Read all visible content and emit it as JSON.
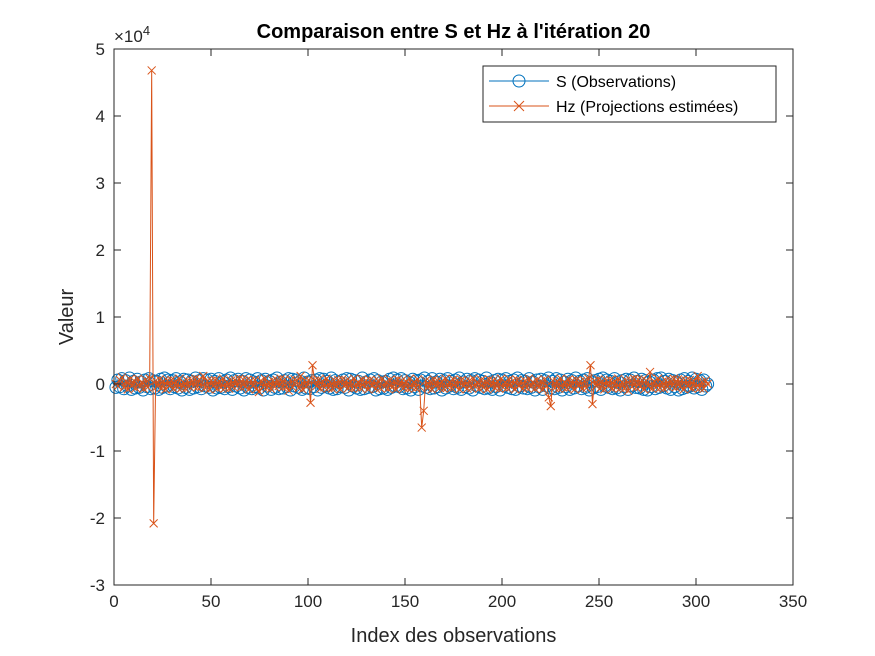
{
  "chart_data": {
    "type": "line",
    "title": "Comparaison entre S et Hz à l'itération 20",
    "xlabel": "Index des observations",
    "ylabel": "Valeur",
    "exponent_label": {
      "base": "×10",
      "power": "4"
    },
    "xlim": [
      0,
      350
    ],
    "ylim": [
      -3,
      5
    ],
    "y_scale_multiplier": 10000,
    "xticks": [
      0,
      50,
      100,
      150,
      200,
      250,
      300,
      350
    ],
    "yticks": [
      -3,
      -2,
      -1,
      0,
      1,
      2,
      3,
      4,
      5
    ],
    "grid": false,
    "legend_position": "top-right",
    "series": [
      {
        "name": "S (Observations)",
        "color": "#0072BD",
        "marker": "circle",
        "x_start": 1,
        "x_end": 306,
        "values": [
          -0.05,
          0.06,
          -0.04,
          0.08,
          -0.07,
          0.05,
          -0.03,
          0.09,
          -0.08,
          0.04,
          -0.06,
          0.07,
          -0.05,
          0.03,
          -0.09,
          0.06,
          -0.04,
          0.08,
          -0.07,
          0.05,
          -0.06,
          0.04,
          -0.08,
          0.07,
          -0.05,
          0.09,
          -0.03,
          0.06,
          -0.07,
          0.05,
          -0.04,
          0.08,
          -0.06,
          0.03,
          -0.09,
          0.07,
          -0.05,
          0.06,
          -0.08,
          0.04,
          -0.06,
          0.09,
          -0.04,
          0.05,
          -0.07,
          0.08,
          -0.03,
          0.06,
          -0.05,
          0.07,
          -0.09,
          0.04,
          -0.06,
          0.08,
          -0.05,
          0.03,
          -0.07,
          0.06,
          -0.04,
          0.09,
          -0.08,
          0.05,
          -0.03,
          0.07,
          -0.06,
          0.04,
          -0.09,
          0.08,
          -0.05,
          0.06,
          -0.07,
          0.03,
          -0.04,
          0.08,
          -0.06,
          0.05,
          -0.09,
          0.07,
          -0.03,
          0.04,
          -0.08,
          0.06,
          -0.05,
          0.09,
          -0.07,
          0.03,
          -0.06,
          0.05,
          -0.04,
          0.08,
          -0.09,
          0.07,
          -0.03,
          0.06,
          -0.05,
          0.04,
          -0.08,
          0.09,
          -0.06,
          0.03,
          -0.07,
          0.05,
          -0.04,
          0.06,
          -0.09,
          0.08,
          -0.05,
          0.07,
          -0.03,
          0.04,
          -0.06,
          0.09,
          -0.08,
          0.05,
          -0.07,
          0.03,
          -0.04,
          0.06,
          -0.05,
          0.08,
          -0.09,
          0.07,
          -0.03,
          0.05,
          -0.06,
          0.04,
          -0.08,
          0.09,
          -0.07,
          0.03,
          -0.05,
          0.06,
          -0.04,
          0.08,
          -0.09,
          0.05,
          -0.07,
          0.03,
          -0.06,
          0.04,
          -0.08,
          0.07,
          -0.05,
          0.09,
          -0.03,
          0.06,
          -0.04,
          0.08,
          -0.07,
          0.05,
          -0.06,
          0.03,
          -0.09,
          0.07,
          -0.04,
          0.05,
          -0.08,
          0.06,
          -0.03,
          0.09,
          -0.05,
          0.04,
          -0.07,
          0.08,
          -0.06,
          0.03,
          -0.04,
          0.07,
          -0.09,
          0.05,
          -0.06,
          0.08,
          -0.03,
          0.04,
          -0.07,
          0.06,
          -0.05,
          0.09,
          -0.08,
          0.03,
          -0.04,
          0.07,
          -0.06,
          0.05,
          -0.09,
          0.08,
          -0.03,
          0.06,
          -0.05,
          0.04,
          -0.07,
          0.09,
          -0.06,
          0.03,
          -0.08,
          0.05,
          -0.04,
          0.07,
          -0.09,
          0.06,
          -0.03,
          0.08,
          -0.05,
          0.04,
          -0.07,
          0.06,
          -0.08,
          0.09,
          -0.03,
          0.05,
          -0.06,
          0.04,
          -0.07,
          0.08,
          -0.05,
          0.03,
          -0.09,
          0.06,
          -0.04,
          0.07,
          -0.08,
          0.05,
          -0.03,
          0.09,
          -0.06,
          0.04,
          -0.07,
          0.08,
          -0.05,
          0.06,
          -0.09,
          0.03,
          -0.04,
          0.07,
          -0.08,
          0.05,
          -0.06,
          0.09,
          -0.03,
          0.04,
          -0.07,
          0.06,
          -0.05,
          0.08,
          -0.09,
          0.03,
          -0.06,
          0.05,
          -0.04,
          0.07,
          -0.08,
          0.09,
          -0.03,
          0.06,
          -0.05,
          0.04,
          -0.07,
          0.08,
          -0.06,
          0.03,
          -0.09,
          0.05,
          -0.04,
          0.07,
          -0.08,
          0.06,
          -0.03,
          0.09,
          -0.05,
          0.04,
          -0.06,
          0.07,
          -0.08,
          0.05,
          -0.09,
          0.03,
          -0.04,
          0.06,
          -0.07,
          0.08,
          -0.05,
          0.09,
          -0.03,
          0.04,
          -0.06,
          0.07,
          -0.08,
          0.05,
          -0.04,
          0.03,
          -0.09,
          0.06,
          -0.07,
          0.08,
          -0.05,
          0.04,
          -0.03,
          0.09,
          -0.06,
          0.07,
          -0.04,
          0.05,
          -0.08,
          0.06,
          -0.03,
          0.0
        ]
      },
      {
        "name": "Hz (Projections estimées)",
        "color": "#D95319",
        "marker": "x",
        "x_start": 1,
        "x_end": 306,
        "values": [
          0.0,
          -0.03,
          0.06,
          0.1,
          -0.05,
          0.04,
          -0.08,
          0.07,
          -0.03,
          0.05,
          -0.06,
          0.08,
          -0.04,
          0.03,
          -0.07,
          0.06,
          -0.05,
          0.08,
          4.68,
          -2.08,
          0.05,
          -0.03,
          0.07,
          -0.06,
          0.04,
          -0.08,
          0.05,
          -0.03,
          0.06,
          -0.07,
          0.04,
          -0.05,
          0.08,
          -0.06,
          0.03,
          -0.07,
          0.05,
          -0.04,
          0.06,
          -0.03,
          0.08,
          -0.05,
          0.07,
          -0.04,
          0.12,
          -0.06,
          0.04,
          -0.08,
          0.05,
          -0.03,
          0.06,
          -0.07,
          0.04,
          -0.05,
          0.08,
          -0.06,
          0.03,
          -0.07,
          0.05,
          -0.04,
          0.06,
          -0.03,
          0.08,
          -0.05,
          0.07,
          -0.04,
          0.06,
          -0.08,
          0.05,
          -0.03,
          0.06,
          -0.07,
          -0.12,
          0.05,
          -0.04,
          0.08,
          -0.06,
          0.03,
          -0.07,
          0.05,
          -0.04,
          0.06,
          -0.03,
          0.08,
          -0.05,
          0.07,
          -0.04,
          -0.1,
          0.06,
          -0.05,
          0.07,
          0.04,
          -0.06,
          0.12,
          -0.08,
          0.05,
          -0.04,
          0.06,
          -0.28,
          0.28,
          0.05,
          -0.03,
          0.06,
          -0.07,
          0.04,
          -0.05,
          0.08,
          -0.06,
          0.03,
          -0.07,
          0.05,
          -0.04,
          0.06,
          -0.08,
          0.07,
          -0.03,
          0.05,
          -0.06,
          0.04,
          -0.07,
          0.08,
          -0.05,
          0.03,
          -0.06,
          0.07,
          -0.04,
          0.05,
          -0.08,
          0.06,
          -0.03,
          0.04,
          -0.07,
          0.05,
          -0.06,
          0.08,
          -0.04,
          0.03,
          -0.07,
          0.06,
          -0.05,
          0.04,
          -0.08,
          0.07,
          -0.03,
          0.05,
          -0.06,
          0.04,
          -0.07,
          0.08,
          -0.05,
          0.03,
          -0.06,
          0.07,
          -0.04,
          -0.65,
          -0.4,
          0.05,
          -0.06,
          0.04,
          -0.08,
          0.07,
          -0.03,
          0.05,
          -0.06,
          0.04,
          -0.07,
          0.08,
          -0.05,
          0.03,
          -0.06,
          0.07,
          -0.04,
          0.05,
          -0.08,
          0.06,
          -0.03,
          0.04,
          -0.07,
          0.05,
          -0.06,
          0.08,
          -0.04,
          0.03,
          -0.07,
          0.06,
          -0.05,
          0.04,
          -0.08,
          0.07,
          -0.03,
          0.05,
          -0.06,
          0.04,
          -0.07,
          0.08,
          -0.05,
          0.03,
          -0.06,
          0.07,
          -0.04,
          0.05,
          -0.08,
          0.06,
          -0.03,
          0.04,
          -0.07,
          0.05,
          -0.06,
          0.08,
          -0.04,
          0.03,
          -0.07,
          0.06,
          -0.05,
          0.04,
          -0.08,
          0.07,
          -0.03,
          -0.2,
          -0.33,
          0.05,
          -0.06,
          0.04,
          -0.07,
          0.08,
          -0.05,
          0.03,
          -0.06,
          0.07,
          -0.04,
          0.05,
          -0.08,
          0.06,
          -0.03,
          0.04,
          -0.07,
          0.05,
          -0.06,
          0.08,
          0.28,
          -0.3,
          0.05,
          -0.03,
          0.07,
          -0.06,
          0.04,
          -0.08,
          0.05,
          -0.03,
          0.06,
          -0.07,
          0.04,
          -0.05,
          0.08,
          -0.06,
          0.03,
          -0.07,
          0.05,
          -0.1,
          0.06,
          -0.04,
          0.08,
          -0.05,
          0.07,
          -0.04,
          0.06,
          -0.08,
          0.05,
          -0.03,
          0.18,
          -0.07,
          0.04,
          -0.05,
          0.08,
          -0.06,
          0.03,
          -0.07,
          0.05,
          -0.04,
          0.06,
          -0.03,
          0.08,
          -0.05,
          0.07,
          -0.04,
          0.06,
          -0.08,
          0.05,
          -0.03,
          0.06,
          -0.07,
          0.04,
          -0.05,
          0.12,
          -0.06,
          0.03,
          -0.07,
          0.05,
          0.0
        ]
      }
    ]
  }
}
